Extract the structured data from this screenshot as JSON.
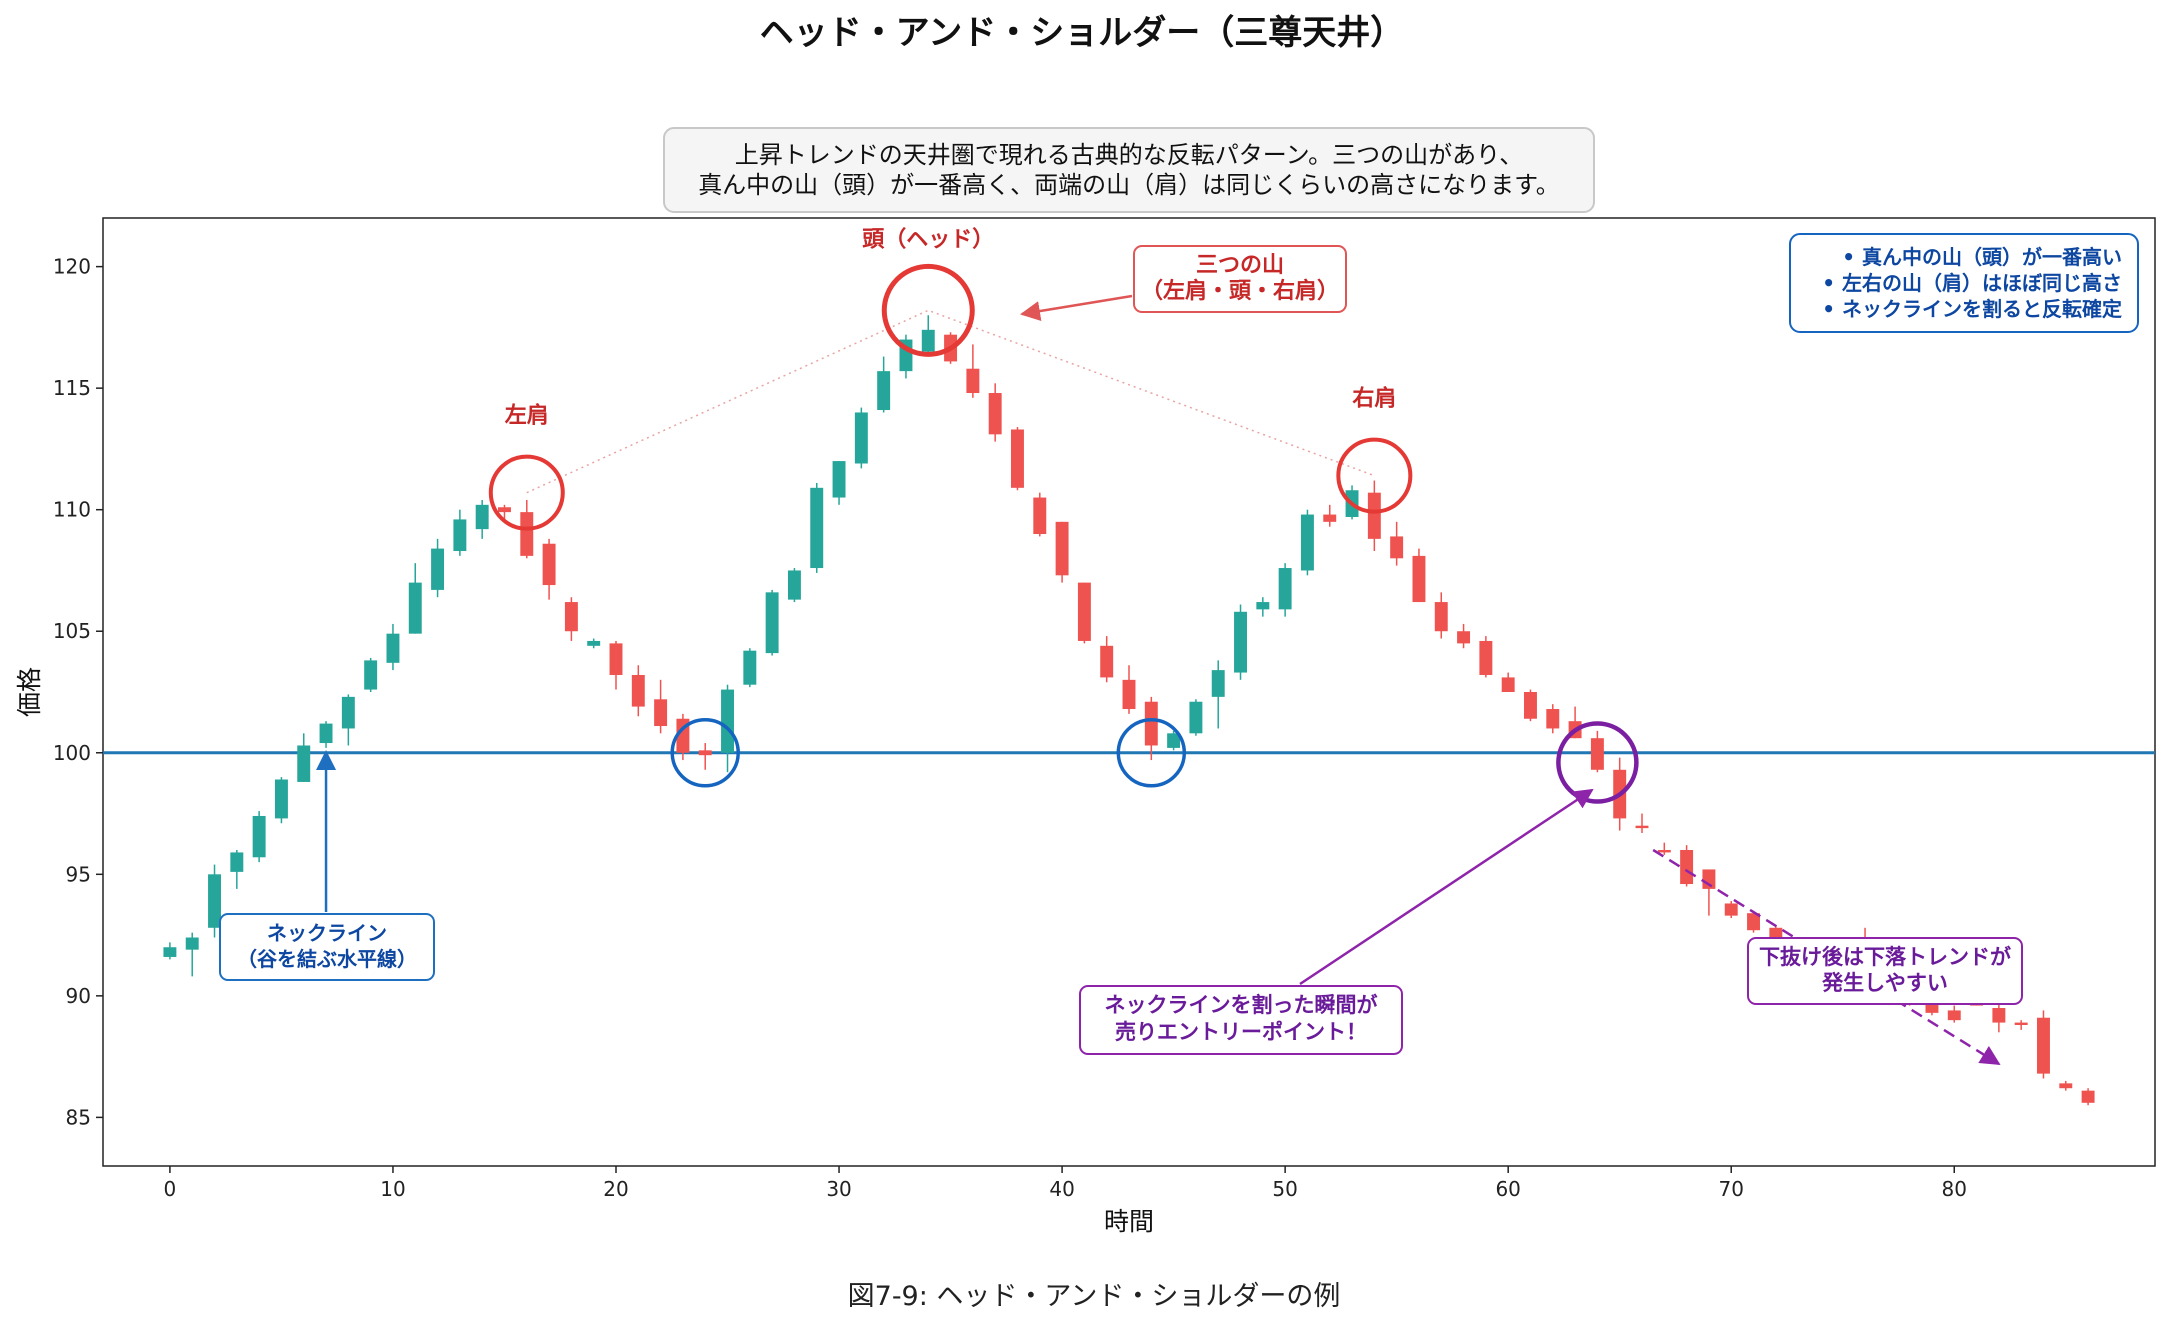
{
  "chart_data": {
    "type": "candlestick",
    "title": "ヘッド・アンド・ショルダー（三尊天井）",
    "description_lines": [
      "上昇トレンドの天井圏で現れる古典的な反転パターン。三つの山があり、",
      "真ん中の山（頭）が一番高く、両端の山（肩）は同じくらいの高さになります。"
    ],
    "caption": "図7-9: ヘッド・アンド・ショルダーの例",
    "xlabel": "時間",
    "ylabel": "価格",
    "xlim": [
      -3,
      89
    ],
    "ylim": [
      83,
      122
    ],
    "xticks": [
      0,
      10,
      20,
      30,
      40,
      50,
      60,
      70,
      80
    ],
    "yticks": [
      85,
      90,
      95,
      100,
      105,
      110,
      115,
      120
    ],
    "neckline": 100,
    "colors": {
      "up": "#26a69a",
      "down": "#ef5350",
      "neckline": "#1f77b4",
      "peak_circle": "#e53935",
      "trough_circle": "#1565c0",
      "break_circle": "#7b1fa2",
      "annotation_red": "#c62828",
      "annotation_blue": "#0d47a1",
      "annotation_purple": "#6a1b9a"
    },
    "candles": [
      {
        "x": 0,
        "o": 91.6,
        "h": 92.2,
        "l": 91.5,
        "c": 92.0
      },
      {
        "x": 1,
        "o": 91.9,
        "h": 92.6,
        "l": 90.8,
        "c": 92.4
      },
      {
        "x": 2,
        "o": 92.8,
        "h": 95.4,
        "l": 92.4,
        "c": 95.0
      },
      {
        "x": 3,
        "o": 95.1,
        "h": 96.0,
        "l": 94.4,
        "c": 95.9
      },
      {
        "x": 4,
        "o": 95.7,
        "h": 97.6,
        "l": 95.5,
        "c": 97.4
      },
      {
        "x": 5,
        "o": 97.3,
        "h": 99.0,
        "l": 97.1,
        "c": 98.9
      },
      {
        "x": 6,
        "o": 98.8,
        "h": 100.8,
        "l": 98.8,
        "c": 100.3
      },
      {
        "x": 7,
        "o": 100.4,
        "h": 101.3,
        "l": 100.2,
        "c": 101.2
      },
      {
        "x": 8,
        "o": 101.0,
        "h": 102.4,
        "l": 100.3,
        "c": 102.3
      },
      {
        "x": 9,
        "o": 102.6,
        "h": 103.9,
        "l": 102.5,
        "c": 103.8
      },
      {
        "x": 10,
        "o": 103.7,
        "h": 105.3,
        "l": 103.4,
        "c": 104.9
      },
      {
        "x": 11,
        "o": 104.9,
        "h": 107.8,
        "l": 104.9,
        "c": 107.0
      },
      {
        "x": 12,
        "o": 106.7,
        "h": 108.8,
        "l": 106.4,
        "c": 108.4
      },
      {
        "x": 13,
        "o": 108.3,
        "h": 110.0,
        "l": 108.1,
        "c": 109.6
      },
      {
        "x": 14,
        "o": 109.2,
        "h": 110.4,
        "l": 108.8,
        "c": 110.2
      },
      {
        "x": 15,
        "o": 110.1,
        "h": 110.2,
        "l": 109.5,
        "c": 109.9
      },
      {
        "x": 16,
        "o": 109.9,
        "h": 110.4,
        "l": 108.0,
        "c": 108.1
      },
      {
        "x": 17,
        "o": 108.6,
        "h": 108.8,
        "l": 106.3,
        "c": 106.9
      },
      {
        "x": 18,
        "o": 106.2,
        "h": 106.4,
        "l": 104.6,
        "c": 105.0
      },
      {
        "x": 19,
        "o": 104.4,
        "h": 104.7,
        "l": 104.3,
        "c": 104.6
      },
      {
        "x": 20,
        "o": 104.5,
        "h": 104.6,
        "l": 102.6,
        "c": 103.2
      },
      {
        "x": 21,
        "o": 103.2,
        "h": 103.6,
        "l": 101.5,
        "c": 101.9
      },
      {
        "x": 22,
        "o": 102.2,
        "h": 103.0,
        "l": 100.8,
        "c": 101.1
      },
      {
        "x": 23,
        "o": 101.4,
        "h": 101.6,
        "l": 99.7,
        "c": 100.0
      },
      {
        "x": 24,
        "o": 100.1,
        "h": 100.4,
        "l": 99.3,
        "c": 99.9
      },
      {
        "x": 25,
        "o": 100.0,
        "h": 102.8,
        "l": 99.2,
        "c": 102.6
      },
      {
        "x": 26,
        "o": 102.8,
        "h": 104.3,
        "l": 102.7,
        "c": 104.2
      },
      {
        "x": 27,
        "o": 104.1,
        "h": 106.7,
        "l": 104.0,
        "c": 106.6
      },
      {
        "x": 28,
        "o": 106.3,
        "h": 107.6,
        "l": 106.2,
        "c": 107.5
      },
      {
        "x": 29,
        "o": 107.6,
        "h": 111.1,
        "l": 107.4,
        "c": 110.9
      },
      {
        "x": 30,
        "o": 110.5,
        "h": 112.0,
        "l": 110.2,
        "c": 112.0
      },
      {
        "x": 31,
        "o": 111.9,
        "h": 114.2,
        "l": 111.7,
        "c": 114.0
      },
      {
        "x": 32,
        "o": 114.1,
        "h": 116.3,
        "l": 114.0,
        "c": 115.7
      },
      {
        "x": 33,
        "o": 115.7,
        "h": 117.2,
        "l": 115.4,
        "c": 117.0
      },
      {
        "x": 34,
        "o": 116.5,
        "h": 118.0,
        "l": 116.4,
        "c": 117.4
      },
      {
        "x": 35,
        "o": 117.2,
        "h": 117.3,
        "l": 116.0,
        "c": 116.1
      },
      {
        "x": 36,
        "o": 115.8,
        "h": 116.8,
        "l": 114.6,
        "c": 114.8
      },
      {
        "x": 37,
        "o": 114.8,
        "h": 115.2,
        "l": 112.8,
        "c": 113.1
      },
      {
        "x": 38,
        "o": 113.3,
        "h": 113.4,
        "l": 110.8,
        "c": 110.9
      },
      {
        "x": 39,
        "o": 110.5,
        "h": 110.7,
        "l": 108.9,
        "c": 109.0
      },
      {
        "x": 40,
        "o": 109.5,
        "h": 109.5,
        "l": 107.0,
        "c": 107.3
      },
      {
        "x": 41,
        "o": 107.0,
        "h": 107.0,
        "l": 104.5,
        "c": 104.6
      },
      {
        "x": 42,
        "o": 104.4,
        "h": 104.8,
        "l": 102.9,
        "c": 103.1
      },
      {
        "x": 43,
        "o": 103.0,
        "h": 103.6,
        "l": 101.6,
        "c": 101.8
      },
      {
        "x": 44,
        "o": 102.1,
        "h": 102.3,
        "l": 99.7,
        "c": 100.3
      },
      {
        "x": 45,
        "o": 100.2,
        "h": 100.9,
        "l": 100.1,
        "c": 100.8
      },
      {
        "x": 46,
        "o": 100.8,
        "h": 102.2,
        "l": 100.7,
        "c": 102.1
      },
      {
        "x": 47,
        "o": 102.3,
        "h": 103.8,
        "l": 101.0,
        "c": 103.4
      },
      {
        "x": 48,
        "o": 103.3,
        "h": 106.1,
        "l": 103.0,
        "c": 105.8
      },
      {
        "x": 49,
        "o": 105.9,
        "h": 106.4,
        "l": 105.6,
        "c": 106.2
      },
      {
        "x": 50,
        "o": 105.9,
        "h": 107.8,
        "l": 105.6,
        "c": 107.6
      },
      {
        "x": 51,
        "o": 107.5,
        "h": 110.0,
        "l": 107.3,
        "c": 109.8
      },
      {
        "x": 52,
        "o": 109.8,
        "h": 110.2,
        "l": 109.3,
        "c": 109.5
      },
      {
        "x": 53,
        "o": 109.7,
        "h": 111.0,
        "l": 109.6,
        "c": 110.8
      },
      {
        "x": 54,
        "o": 110.7,
        "h": 111.2,
        "l": 108.3,
        "c": 108.8
      },
      {
        "x": 55,
        "o": 108.9,
        "h": 109.5,
        "l": 107.7,
        "c": 108.0
      },
      {
        "x": 56,
        "o": 108.1,
        "h": 108.4,
        "l": 106.2,
        "c": 106.2
      },
      {
        "x": 57,
        "o": 106.2,
        "h": 106.6,
        "l": 104.7,
        "c": 105.0
      },
      {
        "x": 58,
        "o": 105.0,
        "h": 105.3,
        "l": 104.3,
        "c": 104.5
      },
      {
        "x": 59,
        "o": 104.6,
        "h": 104.8,
        "l": 103.1,
        "c": 103.2
      },
      {
        "x": 60,
        "o": 103.1,
        "h": 103.3,
        "l": 102.5,
        "c": 102.5
      },
      {
        "x": 61,
        "o": 102.5,
        "h": 102.6,
        "l": 101.3,
        "c": 101.4
      },
      {
        "x": 62,
        "o": 101.8,
        "h": 102.0,
        "l": 100.8,
        "c": 101.0
      },
      {
        "x": 63,
        "o": 101.3,
        "h": 101.9,
        "l": 100.6,
        "c": 100.6
      },
      {
        "x": 64,
        "o": 100.6,
        "h": 100.9,
        "l": 99.2,
        "c": 99.3
      },
      {
        "x": 65,
        "o": 99.3,
        "h": 99.8,
        "l": 96.8,
        "c": 97.3
      },
      {
        "x": 66,
        "o": 97.0,
        "h": 97.5,
        "l": 96.7,
        "c": 96.9
      },
      {
        "x": 67,
        "o": 96.0,
        "h": 96.3,
        "l": 95.8,
        "c": 95.9
      },
      {
        "x": 68,
        "o": 96.0,
        "h": 96.2,
        "l": 94.5,
        "c": 94.6
      },
      {
        "x": 69,
        "o": 95.2,
        "h": 95.2,
        "l": 93.3,
        "c": 94.4
      },
      {
        "x": 70,
        "o": 93.8,
        "h": 93.9,
        "l": 93.2,
        "c": 93.3
      },
      {
        "x": 71,
        "o": 93.4,
        "h": 93.5,
        "l": 92.6,
        "c": 92.7
      },
      {
        "x": 72,
        "o": 92.8,
        "h": 92.9,
        "l": 92.0,
        "c": 92.1
      },
      {
        "x": 73,
        "o": 92.3,
        "h": 92.4,
        "l": 91.7,
        "c": 91.8
      },
      {
        "x": 74,
        "o": 91.8,
        "h": 92.0,
        "l": 91.3,
        "c": 91.4
      },
      {
        "x": 75,
        "o": 91.4,
        "h": 91.6,
        "l": 90.8,
        "c": 91.0
      },
      {
        "x": 76,
        "o": 91.0,
        "h": 92.8,
        "l": 90.5,
        "c": 90.6
      },
      {
        "x": 77,
        "o": 90.6,
        "h": 90.8,
        "l": 90.0,
        "c": 90.1
      },
      {
        "x": 78,
        "o": 90.1,
        "h": 90.3,
        "l": 89.6,
        "c": 89.7
      },
      {
        "x": 79,
        "o": 89.7,
        "h": 89.9,
        "l": 89.2,
        "c": 89.3
      },
      {
        "x": 80,
        "o": 89.4,
        "h": 89.6,
        "l": 88.9,
        "c": 89.0
      },
      {
        "x": 81,
        "o": 90.3,
        "h": 90.4,
        "l": 89.6,
        "c": 89.6
      },
      {
        "x": 82,
        "o": 89.5,
        "h": 89.7,
        "l": 88.5,
        "c": 88.9
      },
      {
        "x": 83,
        "o": 88.9,
        "h": 89.0,
        "l": 88.6,
        "c": 88.8
      },
      {
        "x": 84,
        "o": 89.1,
        "h": 89.4,
        "l": 86.6,
        "c": 86.8
      },
      {
        "x": 85,
        "o": 86.4,
        "h": 86.5,
        "l": 86.1,
        "c": 86.2
      },
      {
        "x": 86,
        "o": 86.1,
        "h": 86.2,
        "l": 85.5,
        "c": 85.6
      }
    ],
    "peaks": {
      "left_shoulder": {
        "label": "左肩",
        "x": 16,
        "y": 110.7
      },
      "head": {
        "label": "頭（ヘッド）",
        "x": 34,
        "y": 118.2
      },
      "right_shoulder": {
        "label": "右肩",
        "x": 54,
        "y": 111.4
      }
    },
    "troughs": [
      {
        "x": 24,
        "y": 100
      },
      {
        "x": 44,
        "y": 100
      }
    ],
    "breakdown": {
      "x": 64,
      "y": 99.6
    },
    "annotations": {
      "three_peaks": [
        "三つの山",
        "（左肩・頭・右肩）"
      ],
      "neckline": [
        "ネックライン",
        "（谷を結ぶ水平線）"
      ],
      "entry": [
        "ネックラインを割った瞬間が",
        "売りエントリーポイント！"
      ],
      "downtrend": [
        "下抜け後は下落トレンドが",
        "発生しやすい"
      ],
      "legend_notes": [
        "• 真ん中の山（頭）が一番高い",
        "• 左右の山（肩）はほぼ同じ高さ",
        "• ネックラインを割ると反転確定"
      ]
    }
  }
}
